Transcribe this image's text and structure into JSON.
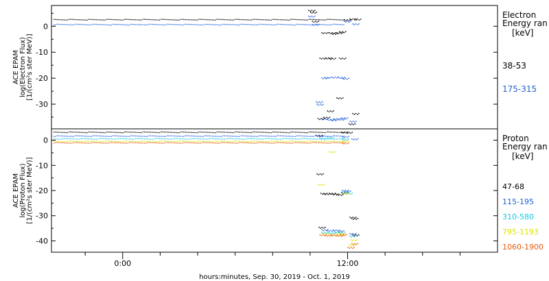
{
  "chart_data": [
    {
      "type": "scatter",
      "ylabel_lines": [
        "ACE EPAM",
        "log(Electron Flux)",
        "[1/(cm²s ster MeV)]"
      ],
      "legend_title_lines": [
        "Electron",
        "Energy ran",
        "[keV]"
      ],
      "ylim": [
        -39.5,
        8
      ],
      "yticks": [
        0,
        -10,
        -20,
        -30
      ],
      "series": [
        {
          "name": "38-53",
          "color": "#000000",
          "baseline": 2.7,
          "points": [
            [
              -2.1,
              6.2
            ],
            [
              -2.0,
              5.5
            ],
            [
              -1.9,
              2.0
            ],
            [
              -1.4,
              -2.4
            ],
            [
              -1.0,
              -2.4
            ],
            [
              -0.9,
              -2.7
            ],
            [
              -0.6,
              -2.4
            ],
            [
              -0.45,
              -2.0
            ],
            [
              -0.2,
              2.6
            ],
            [
              0.1,
              2.9
            ],
            [
              0.35,
              2.8
            ],
            [
              -1.5,
              -12.2
            ],
            [
              -1.2,
              -12.1
            ],
            [
              -1.0,
              -12.3
            ],
            [
              -0.45,
              -12.2
            ],
            [
              -0.6,
              -27.5
            ],
            [
              -1.6,
              -35.5
            ],
            [
              -1.3,
              -35.0
            ],
            [
              0.05,
              -37.5
            ],
            [
              0.25,
              -33.5
            ],
            [
              -1.1,
              -32.5
            ]
          ]
        },
        {
          "name": "175-315",
          "color": "#1f5fd9",
          "baseline": 0.8,
          "points": [
            [
              -2.1,
              4.0
            ],
            [
              -1.9,
              0.8
            ],
            [
              -1.7,
              -29.0
            ],
            [
              -1.65,
              -30.0
            ],
            [
              -1.4,
              -19.8
            ],
            [
              -1.25,
              -19.6
            ],
            [
              -0.85,
              -19.5
            ],
            [
              -0.5,
              -19.6
            ],
            [
              -0.3,
              -20.0
            ],
            [
              -1.4,
              -35.5
            ],
            [
              -1.1,
              -35.8
            ],
            [
              -0.9,
              -36.0
            ],
            [
              -0.75,
              -35.5
            ],
            [
              -0.5,
              -35.7
            ],
            [
              -0.35,
              -35.2
            ],
            [
              0.1,
              -36.5
            ],
            [
              0.25,
              1.0
            ],
            [
              -0.2,
              2.0
            ]
          ]
        }
      ]
    },
    {
      "type": "scatter",
      "ylabel_lines": [
        "ACE EPAM",
        "log(Proton Flux)",
        "[1/(cm²s ster MeV)]"
      ],
      "legend_title_lines": [
        "Proton",
        "Energy ran",
        "[keV]"
      ],
      "ylim": [
        -44.5,
        4.5
      ],
      "yticks": [
        0,
        -10,
        -20,
        -30,
        -40
      ],
      "series": [
        {
          "name": "47-68",
          "color": "#000000",
          "baseline": 3.3,
          "points": [
            [
              -1.65,
              -13.3
            ],
            [
              -1.45,
              -21.0
            ],
            [
              -1.3,
              -21.2
            ],
            [
              -1.0,
              -21.0
            ],
            [
              -0.85,
              -21.3
            ],
            [
              -0.6,
              -21.5
            ],
            [
              -0.35,
              -20.8
            ],
            [
              -0.35,
              3.3
            ],
            [
              -0.1,
              3.2
            ],
            [
              0.1,
              -30.5
            ],
            [
              0.2,
              -31.0
            ],
            [
              0.25,
              -37.5
            ],
            [
              -1.55,
              -34.5
            ],
            [
              -1.7,
              2.0
            ]
          ]
        },
        {
          "name": "115-195",
          "color": "#1f5fd9",
          "baseline": 1.8,
          "points": [
            [
              -1.6,
              1.8
            ],
            [
              -1.4,
              -35.5
            ],
            [
              -1.1,
              -35.8
            ],
            [
              -0.8,
              -35.6
            ],
            [
              -0.55,
              -35.9
            ],
            [
              -0.3,
              -19.8
            ],
            [
              -0.2,
              -20.2
            ],
            [
              0.1,
              -37.0
            ],
            [
              -0.3,
              1.5
            ],
            [
              0.2,
              0.6
            ]
          ]
        },
        {
          "name": "310-580",
          "color": "#18c7e6",
          "baseline": 0.7,
          "points": [
            [
              -1.5,
              0.7
            ],
            [
              -1.4,
              -36.5
            ],
            [
              -1.0,
              -36.7
            ],
            [
              -0.7,
              -36.4
            ],
            [
              -0.5,
              -36.6
            ],
            [
              -0.3,
              -20.5
            ],
            [
              -0.1,
              -21.0
            ],
            [
              0.1,
              -38.0
            ],
            [
              -0.3,
              0.5
            ],
            [
              -1.1,
              1.2
            ]
          ]
        },
        {
          "name": "795-1193",
          "color": "#e0e000",
          "baseline": -0.3,
          "points": [
            [
              -1.6,
              -17.5
            ],
            [
              -1.4,
              -37.0
            ],
            [
              -1.0,
              -37.2
            ],
            [
              -0.6,
              -36.9
            ],
            [
              -0.5,
              -37.3
            ],
            [
              -0.25,
              -21.0
            ],
            [
              0.05,
              -41.5
            ],
            [
              0.15,
              -39.5
            ],
            [
              -1.0,
              -4.5
            ],
            [
              -0.3,
              -0.2
            ]
          ]
        },
        {
          "name": "1060-1900",
          "color": "#e45a0a",
          "baseline": -0.9,
          "points": [
            [
              -1.5,
              -37.5
            ],
            [
              -1.2,
              -37.7
            ],
            [
              -0.9,
              -37.6
            ],
            [
              -0.6,
              -37.8
            ],
            [
              -0.4,
              -37.4
            ],
            [
              0.0,
              -42.5
            ],
            [
              0.2,
              -41.0
            ],
            [
              -0.3,
              -1.0
            ]
          ]
        }
      ]
    }
  ],
  "xaxis": {
    "label": "hours:minutes, Sep. 30, 2019 - Oct.  1, 2019",
    "range_hours": [
      -15.8,
      8.0
    ],
    "major_ticks": [
      {
        "hours": -12,
        "label": "0:00"
      },
      {
        "hours": 0,
        "label": "12:00"
      }
    ],
    "minor_tick_hours": [
      -14,
      -10,
      -8,
      -6,
      -4,
      -2,
      2,
      4,
      6
    ],
    "data_end_hours": -0.15
  },
  "colors": {
    "axis": "#000000",
    "background": "#ffffff"
  }
}
